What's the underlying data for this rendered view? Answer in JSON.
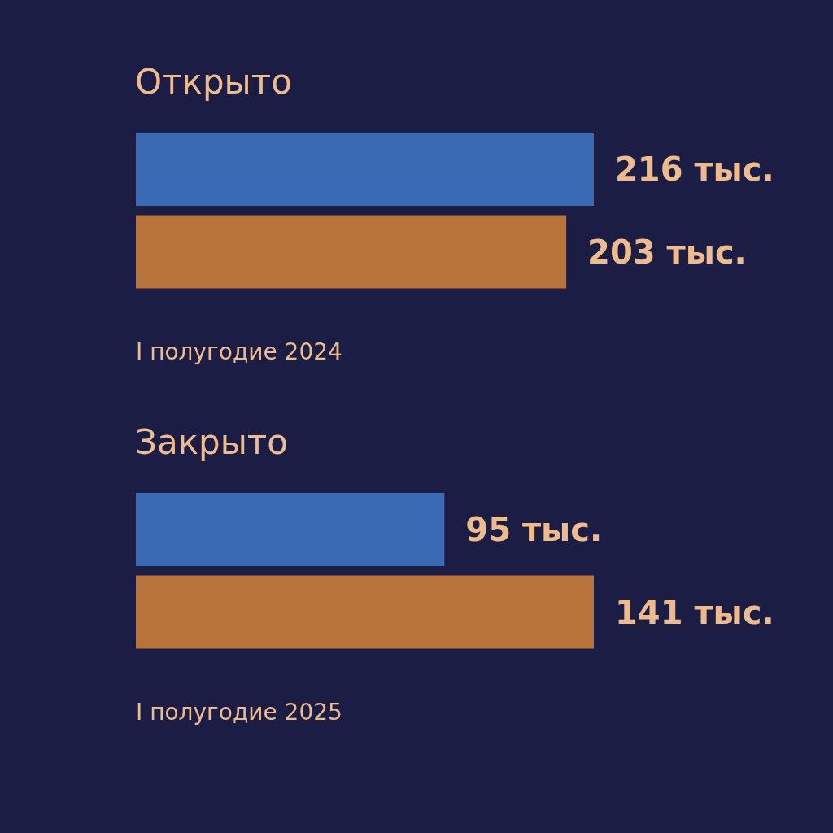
{
  "chart_data": [
    {
      "type": "bar",
      "orientation": "horizontal",
      "title": "Открыто",
      "categories": [
        null,
        null
      ],
      "values": [
        216,
        203
      ],
      "colors": [
        "#3b6ab4",
        "#b8733a"
      ],
      "value_labels": [
        "216 тыс.",
        "203 тыс."
      ],
      "annotations": [
        "I полугодие 2024"
      ]
    },
    {
      "type": "bar",
      "orientation": "horizontal",
      "title": "Закрыто",
      "categories": [
        null,
        null
      ],
      "values": [
        95,
        141
      ],
      "colors": [
        "#3b6ab4",
        "#b8733a"
      ],
      "value_labels": [
        "95 тыс.",
        "141 тыс."
      ],
      "annotations": [
        "I полугодие 2025"
      ]
    }
  ]
}
